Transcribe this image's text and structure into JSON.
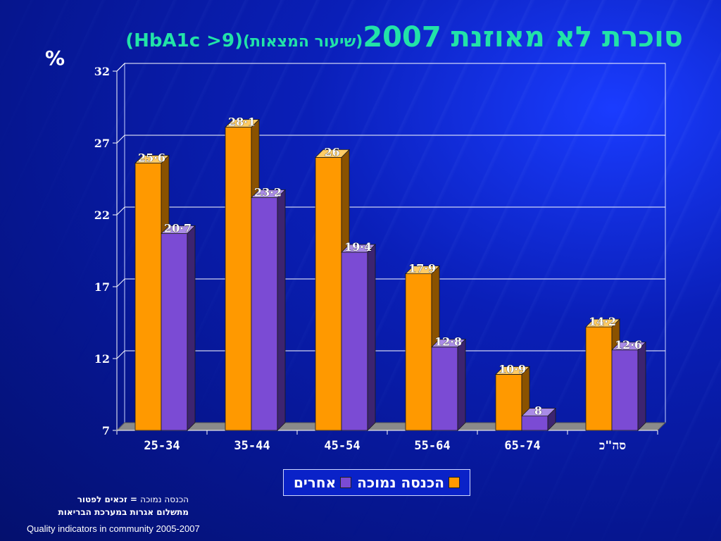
{
  "title": {
    "main": "סוכרת לא מאוזנת 2007",
    "sub": "(שיעור המצאות)",
    "code": "(HbA1c >9)"
  },
  "yunit": "%",
  "colors": {
    "low_income": "#ff9900",
    "others": "#7b4bd4",
    "grid": "#ffffff",
    "text": "#ffffff"
  },
  "legend": {
    "low_income": "הכנסה נמוכה",
    "others": "אחרים"
  },
  "footnote": {
    "line1_light": "הכנסה נמוכה",
    "line1_bold": "= זכאים לפטור",
    "line2": "מתשלום אגרות במערכת הבריאות"
  },
  "source": "Quality indicators in community 2005-2007",
  "chart_data": {
    "type": "bar",
    "categories": [
      "25-34",
      "35-44",
      "45-54",
      "55-64",
      "65-74",
      "סה\"כ"
    ],
    "series": [
      {
        "name": "הכנסה נמוכה",
        "values": [
          25.6,
          28.1,
          26,
          17.9,
          10.9,
          14.2
        ],
        "labels": [
          "25·6",
          "28·1",
          "26",
          "17·9",
          "10·9",
          "14·2"
        ]
      },
      {
        "name": "אחרים",
        "values": [
          20.7,
          23.2,
          19.4,
          12.8,
          8,
          12.6
        ],
        "labels": [
          "20·7",
          "23·2",
          "19·4",
          "12·8",
          "8",
          "12·6"
        ]
      }
    ],
    "yticks": [
      7,
      12,
      17,
      22,
      27,
      32
    ],
    "ylim": [
      7,
      32
    ],
    "ylabel": "%",
    "legend_position": "bottom",
    "grid": true
  }
}
